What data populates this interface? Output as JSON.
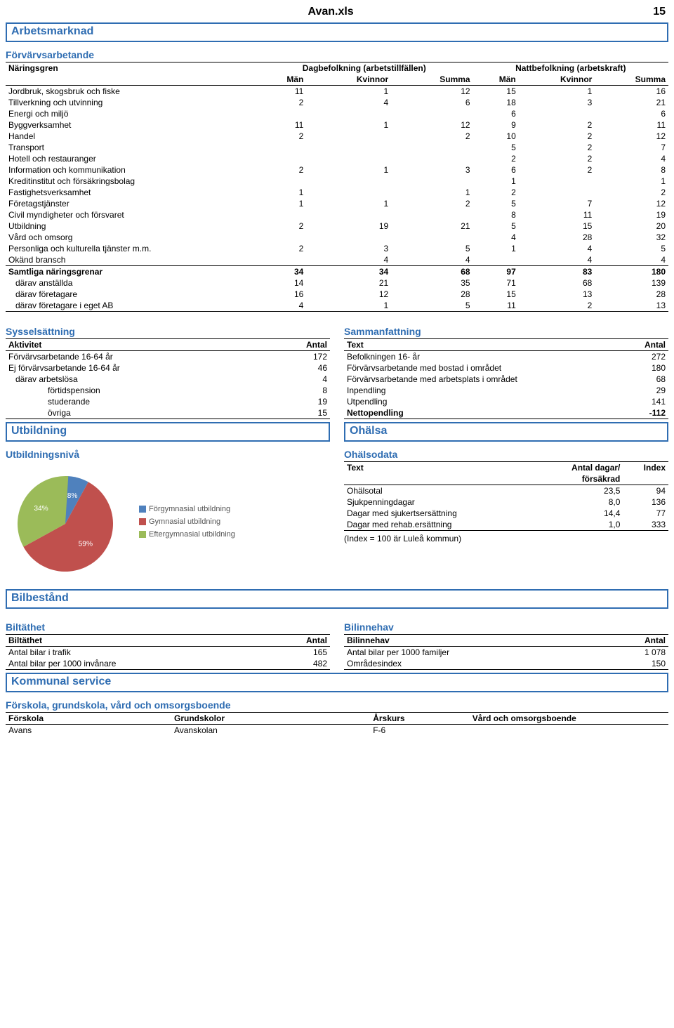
{
  "page": {
    "title": "Avan.xls",
    "number": "15"
  },
  "sections": {
    "arbetsmarknad": "Arbetsmarknad",
    "utbildning": "Utbildning",
    "ohalsa": "Ohälsa",
    "bilbestand": "Bilbestånd",
    "kommunal": "Kommunal service"
  },
  "naringsgren": {
    "heading": "Förvärvsarbetande",
    "col_label": "Näringsgren",
    "group1": "Dagbefolkning (arbetstillfällen)",
    "group2": "Nattbefolkning (arbetskraft)",
    "sub": {
      "man": "Män",
      "kvinnor": "Kvinnor",
      "summa": "Summa"
    },
    "rows": [
      {
        "label": "Jordbruk, skogsbruk och fiske",
        "v": [
          "11",
          "1",
          "12",
          "15",
          "1",
          "16"
        ]
      },
      {
        "label": "Tillverkning och utvinning",
        "v": [
          "2",
          "4",
          "6",
          "18",
          "3",
          "21"
        ]
      },
      {
        "label": "Energi och miljö",
        "v": [
          "",
          "",
          "",
          "6",
          "",
          "6"
        ]
      },
      {
        "label": "Byggverksamhet",
        "v": [
          "11",
          "1",
          "12",
          "9",
          "2",
          "11"
        ]
      },
      {
        "label": "Handel",
        "v": [
          "2",
          "",
          "2",
          "10",
          "2",
          "12"
        ]
      },
      {
        "label": "Transport",
        "v": [
          "",
          "",
          "",
          "5",
          "2",
          "7"
        ]
      },
      {
        "label": "Hotell och restauranger",
        "v": [
          "",
          "",
          "",
          "2",
          "2",
          "4"
        ]
      },
      {
        "label": "Information och kommunikation",
        "v": [
          "2",
          "1",
          "3",
          "6",
          "2",
          "8"
        ]
      },
      {
        "label": "Kreditinstitut och försäkringsbolag",
        "v": [
          "",
          "",
          "",
          "1",
          "",
          "1"
        ]
      },
      {
        "label": "Fastighetsverksamhet",
        "v": [
          "1",
          "",
          "1",
          "2",
          "",
          "2"
        ]
      },
      {
        "label": "Företagstjänster",
        "v": [
          "1",
          "1",
          "2",
          "5",
          "7",
          "12"
        ]
      },
      {
        "label": "Civil myndigheter och försvaret",
        "v": [
          "",
          "",
          "",
          "8",
          "11",
          "19"
        ]
      },
      {
        "label": "Utbildning",
        "v": [
          "2",
          "19",
          "21",
          "5",
          "15",
          "20"
        ]
      },
      {
        "label": "Vård och omsorg",
        "v": [
          "",
          "",
          "",
          "4",
          "28",
          "32"
        ]
      },
      {
        "label": "Personliga och kulturella tjänster m.m.",
        "v": [
          "2",
          "3",
          "5",
          "1",
          "4",
          "5"
        ]
      },
      {
        "label": "Okänd bransch",
        "v": [
          "",
          "4",
          "4",
          "",
          "4",
          "4"
        ]
      }
    ],
    "total": {
      "label": "Samtliga näringsgrenar",
      "v": [
        "34",
        "34",
        "68",
        "97",
        "83",
        "180"
      ]
    },
    "sub_totals": [
      {
        "label": "därav anställda",
        "v": [
          "14",
          "21",
          "35",
          "71",
          "68",
          "139"
        ]
      },
      {
        "label": "därav företagare",
        "v": [
          "16",
          "12",
          "28",
          "15",
          "13",
          "28"
        ]
      },
      {
        "label": "därav företagare i eget AB",
        "v": [
          "4",
          "1",
          "5",
          "11",
          "2",
          "13"
        ]
      }
    ]
  },
  "sysselsattning": {
    "heading": "Sysselsättning",
    "col_label": "Aktivitet",
    "col_val": "Antal",
    "rows": [
      {
        "label": "Förvärvsarbetande 16-64 år",
        "v": "172",
        "indent": 0
      },
      {
        "label": "Ej förvärvsarbetande 16-64 år",
        "v": "46",
        "indent": 0
      },
      {
        "label": "därav arbetslösa",
        "v": "4",
        "indent": 1
      },
      {
        "label": "förtidspension",
        "v": "8",
        "indent": 2
      },
      {
        "label": "studerande",
        "v": "19",
        "indent": 2
      },
      {
        "label": "övriga",
        "v": "15",
        "indent": 2
      }
    ]
  },
  "sammanfattning": {
    "heading": "Sammanfattning",
    "col_label": "Text",
    "col_val": "Antal",
    "rows": [
      {
        "label": "Befolkningen 16- år",
        "v": "272"
      },
      {
        "label": "Förvärvsarbetande med bostad i området",
        "v": "180"
      },
      {
        "label": "Förvärvsarbetande med arbetsplats i området",
        "v": "68"
      },
      {
        "label": "Inpendling",
        "v": "29"
      },
      {
        "label": "Utpendling",
        "v": "141"
      },
      {
        "label": "Nettopendling",
        "v": "-112",
        "bold": true
      }
    ]
  },
  "utbildningsniva": {
    "heading": "Utbildningsnivå",
    "pie": {
      "slices": [
        {
          "label": "Förgymnasial utbildning",
          "pct": 8,
          "color": "#4f81bd"
        },
        {
          "label": "Gymnasial utbildning",
          "pct": 59,
          "color": "#c0504d"
        },
        {
          "label": "Eftergymnasial utbildning",
          "pct": 34,
          "color": "#9bbb59"
        }
      ],
      "label_color": "#ffffff",
      "label_fontsize": 12
    }
  },
  "ohalsodata": {
    "heading": "Ohälsodata",
    "cols": {
      "text": "Text",
      "dagar": "Antal dagar/",
      "forsakrad": "försäkrad",
      "index": "Index"
    },
    "rows": [
      {
        "label": "Ohälsotal",
        "v1": "23,5",
        "v2": "94"
      },
      {
        "label": "Sjukpenningdagar",
        "v1": "8,0",
        "v2": "136"
      },
      {
        "label": "Dagar med sjukertsersättning",
        "v1": "14,4",
        "v2": "77"
      },
      {
        "label": "Dagar med rehab.ersättning",
        "v1": "1,0",
        "v2": "333"
      }
    ],
    "note": "(Index = 100 är Luleå kommun)"
  },
  "biltathet": {
    "heading": "Biltäthet",
    "col_label": "Biltäthet",
    "col_val": "Antal",
    "rows": [
      {
        "label": "Antal bilar i trafik",
        "v": "165"
      },
      {
        "label": "Antal bilar per 1000 invånare",
        "v": "482"
      }
    ]
  },
  "bilinnehav": {
    "heading": "Bilinnehav",
    "col_label": "Bilinnehav",
    "col_val": "Antal",
    "rows": [
      {
        "label": "Antal bilar per 1000 familjer",
        "v": "1 078"
      },
      {
        "label": "Områdesindex",
        "v": "150"
      }
    ]
  },
  "forskola": {
    "heading": "Förskola, grundskola, vård och omsorgsboende",
    "cols": {
      "forskola": "Förskola",
      "grundskolor": "Grundskolor",
      "arskurs": "Årskurs",
      "vard": "Vård och omsorgsboende"
    },
    "rows": [
      {
        "forskola": "Avans",
        "grundskolor": "Avanskolan",
        "arskurs": "F-6",
        "vard": ""
      }
    ]
  }
}
